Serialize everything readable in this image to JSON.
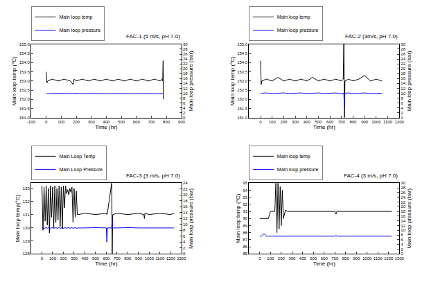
{
  "chart_data": [
    {
      "type": "line",
      "annotation": "FAC-1 (5 m/s, pH 7.0)",
      "x_label": "Time (hr)",
      "y_label": "Main loop temp (°C)",
      "y2_label": "Main loop pressure (bar)",
      "xlim": [
        -100,
        900
      ],
      "xticks": [
        -100,
        0,
        100,
        200,
        300,
        400,
        500,
        600,
        700,
        800,
        900
      ],
      "ylim": [
        151,
        155
      ],
      "yticks": [
        {
          "value": 151,
          "label": "151.0"
        },
        151.5,
        {
          "value": 152,
          "label": "152.0"
        },
        152.5,
        {
          "value": 153,
          "label": "153.0"
        },
        153.5,
        {
          "value": 154,
          "label": "154.0"
        },
        154.5,
        {
          "value": 155,
          "label": "155.0"
        }
      ],
      "y2lim": [
        0,
        30
      ],
      "y2ticks": [
        0,
        2,
        4,
        6,
        8,
        10,
        12,
        14,
        16,
        18,
        20,
        22,
        24,
        26,
        28,
        30
      ],
      "legend": "upper left",
      "grid": false,
      "x": [
        0,
        5,
        10,
        40,
        80,
        120,
        160,
        180,
        185,
        200,
        240,
        280,
        320,
        360,
        400,
        440,
        480,
        520,
        560,
        600,
        640,
        680,
        720,
        760,
        770,
        775,
        778,
        780
      ],
      "series": [
        {
          "name": "Main loop temp",
          "color": "#000000",
          "values": [
            153.5,
            152.9,
            153.0,
            153.1,
            153.0,
            153.1,
            153.0,
            152.8,
            153.1,
            153.0,
            153.1,
            153.0,
            153.1,
            153.0,
            153.1,
            153.0,
            153.1,
            153.0,
            153.1,
            153.0,
            153.1,
            153.0,
            153.1,
            153.0,
            153.1,
            153.0,
            154.1,
            152.0
          ]
        },
        {
          "name": "Main loop pressure",
          "color": "#0000ff",
          "axis": "y2",
          "values": [
            9.9,
            10.0,
            9.8,
            9.9,
            10.0,
            9.9,
            9.8,
            9.9,
            10.0,
            9.9,
            9.8,
            9.9,
            10.0,
            9.9,
            9.8,
            9.9,
            10.0,
            9.9,
            9.8,
            9.9,
            10.0,
            9.9,
            9.8,
            9.9,
            10.0,
            9.9,
            9.9,
            9.9
          ]
        }
      ]
    },
    {
      "type": "line",
      "annotation": "FAC-2 (3m/s, pH 7.0)",
      "x_label": "Time (hr)",
      "y_label": "Main loop temp (°C)",
      "y2_label": "Main loop pressure (bar)",
      "xlim": [
        -100,
        1200
      ],
      "xticks": [
        0,
        100,
        200,
        300,
        400,
        500,
        600,
        700,
        800,
        900,
        1000,
        1100,
        1200
      ],
      "ylim": [
        151,
        155
      ],
      "yticks": [
        {
          "value": 151,
          "label": "151.0"
        },
        151.5,
        {
          "value": 152,
          "label": "152.0"
        },
        152.5,
        {
          "value": 153,
          "label": "153.0"
        },
        153.5,
        {
          "value": 154,
          "label": "154.0"
        },
        154.5,
        {
          "value": 155,
          "label": "155.0"
        }
      ],
      "y2lim": [
        0,
        30
      ],
      "y2ticks": [
        0,
        2,
        4,
        6,
        8,
        10,
        12,
        14,
        16,
        18,
        20,
        22,
        24,
        26,
        28,
        30
      ],
      "legend": "upper left",
      "grid": false,
      "x": [
        0,
        5,
        10,
        50,
        100,
        150,
        200,
        250,
        300,
        350,
        400,
        450,
        500,
        550,
        600,
        650,
        700,
        715,
        720,
        725,
        730,
        760,
        800,
        850,
        900,
        950,
        1000,
        1050
      ],
      "series": [
        {
          "name": "Main loop temp",
          "color": "#000000",
          "values": [
            154.1,
            152.8,
            153.0,
            153.1,
            153.0,
            153.2,
            153.0,
            153.1,
            153.0,
            153.1,
            153.0,
            153.2,
            153.0,
            153.1,
            153.0,
            153.1,
            153.0,
            153.1,
            155,
            151,
            153.0,
            153.1,
            153.0,
            153.1,
            153.3,
            153.0,
            153.1,
            153.0
          ]
        },
        {
          "name": "Main loop pressure",
          "color": "#0000ff",
          "axis": "y2",
          "values": [
            10.0,
            9.9,
            10.0,
            10.1,
            9.9,
            10.0,
            10.1,
            9.9,
            10.0,
            10.1,
            9.9,
            10.0,
            10.1,
            9.9,
            10.0,
            10.1,
            9.9,
            10.0,
            10.0,
            4.0,
            10.0,
            10.1,
            9.9,
            10.0,
            10.1,
            9.9,
            10.0,
            10.0
          ]
        }
      ]
    },
    {
      "type": "line",
      "annotation": "FAC-3 (3 m/s, pH 7.0)",
      "x_label": "Time (hr)",
      "y_label": "Main loop temp(°C)",
      "y2_label": "Main loop pressure (bar)",
      "xlim": [
        -100,
        1300
      ],
      "xticks": [
        0,
        100,
        200,
        300,
        400,
        500,
        600,
        700,
        800,
        900,
        1000,
        1100,
        1200,
        1300
      ],
      "ylim": [
        128,
        133.4
      ],
      "yticks": [
        128,
        129,
        130,
        131,
        132,
        133
      ],
      "y2lim": [
        0,
        24
      ],
      "y2ticks": [
        0,
        2,
        4,
        6,
        8,
        10,
        12,
        14,
        16,
        18,
        20,
        22,
        24
      ],
      "legend": "upper left",
      "grid": false,
      "x": [
        0,
        10,
        20,
        30,
        40,
        50,
        60,
        70,
        80,
        90,
        100,
        110,
        120,
        130,
        140,
        150,
        160,
        170,
        180,
        190,
        200,
        210,
        220,
        230,
        240,
        250,
        260,
        270,
        280,
        290,
        300,
        310,
        320,
        330,
        340,
        400,
        500,
        600,
        605,
        610,
        650,
        655,
        660,
        700,
        800,
        900,
        950,
        955,
        960,
        1000,
        1100,
        1200,
        1230
      ],
      "series": [
        {
          "name": "Main Loop Temp",
          "color": "#000000",
          "values": [
            133.2,
            129.8,
            133.1,
            130.5,
            133.2,
            130.2,
            133.0,
            129.6,
            133.2,
            130.8,
            133.1,
            130.0,
            133.2,
            130.4,
            133.0,
            130.6,
            133.2,
            130.1,
            133.1,
            129.9,
            133.2,
            131.5,
            133.2,
            132.6,
            132.9,
            132.5,
            133.0,
            132.7,
            133.1,
            130.4,
            133.0,
            130.8,
            132.8,
            131.0,
            131.0,
            131.1,
            131.0,
            131.1,
            131.0,
            131.1,
            133.4,
            128,
            131.0,
            131.1,
            131.0,
            131.1,
            131.0,
            130.7,
            131.1,
            131.0,
            131.1,
            131.0,
            131.1
          ]
        },
        {
          "name": "Main Loop Pressure",
          "color": "#0000ff",
          "axis": "y2",
          "values": [
            8.8,
            8.9,
            8.7,
            8.8,
            8.9,
            8.7,
            8.8,
            8.9,
            8.7,
            8.8,
            8.9,
            8.7,
            8.8,
            8.9,
            8.7,
            8.8,
            8.9,
            8.7,
            8.8,
            8.9,
            8.7,
            8.8,
            8.9,
            8.7,
            8.8,
            8.9,
            8.7,
            8.8,
            8.9,
            8.7,
            8.8,
            8.9,
            8.7,
            8.8,
            8.8,
            8.8,
            8.9,
            8.8,
            4.0,
            8.8,
            8.8,
            12.0,
            8.8,
            8.8,
            8.9,
            8.8,
            8.8,
            8.8,
            8.8,
            8.9,
            8.8,
            8.8,
            8.8
          ]
        }
      ]
    },
    {
      "type": "line",
      "annotation": "FAC-4 (3 m/s, pH 7.0)",
      "x_label": "Time (hr)",
      "y_label": "Main loop temp (°C)",
      "y2_label": "Main loop pressure (bar)",
      "xlim": [
        -100,
        1300
      ],
      "xticks": [
        0,
        100,
        200,
        300,
        400,
        500,
        600,
        700,
        800,
        900,
        1000,
        1100,
        1200,
        1300
      ],
      "ylim": [
        85,
        95
      ],
      "yticks": [
        85,
        86,
        87,
        88,
        89,
        90,
        91,
        92,
        93,
        94,
        95
      ],
      "y2lim": [
        0,
        30
      ],
      "y2ticks": [
        0,
        2,
        4,
        6,
        8,
        10,
        12,
        14,
        16,
        18,
        20,
        22,
        24,
        26,
        28,
        30
      ],
      "legend": "upper left",
      "grid": false,
      "x": [
        0,
        20,
        40,
        60,
        80,
        100,
        110,
        120,
        140,
        150,
        160,
        170,
        180,
        190,
        200,
        210,
        220,
        240,
        260,
        300,
        400,
        500,
        600,
        700,
        710,
        720,
        800,
        900,
        1000,
        1100,
        1200,
        1230
      ],
      "series": [
        {
          "name": "Main loop temp",
          "color": "#000000",
          "values": [
            90.0,
            90.0,
            90.0,
            90.0,
            90.0,
            91.0,
            91.0,
            91.0,
            91.0,
            95,
            88,
            95,
            88.5,
            94.5,
            89,
            94,
            90,
            91.2,
            91.0,
            91.0,
            91.0,
            91.0,
            91.0,
            91.0,
            90.6,
            91.0,
            91.0,
            91.0,
            91.0,
            91.0,
            91.0,
            91.0
          ]
        },
        {
          "name": "Main loop pressure",
          "color": "#0000ff",
          "axis": "y2",
          "values": [
            7.5,
            7.6,
            8.6,
            7.5,
            7.5,
            7.4,
            7.5,
            7.5,
            7.5,
            7.5,
            7.5,
            7.5,
            7.5,
            7.5,
            7.5,
            7.5,
            7.5,
            7.5,
            7.5,
            7.5,
            7.5,
            7.5,
            7.5,
            7.5,
            7.9,
            7.5,
            7.5,
            7.5,
            7.5,
            7.5,
            7.5,
            7.5
          ]
        }
      ]
    }
  ]
}
